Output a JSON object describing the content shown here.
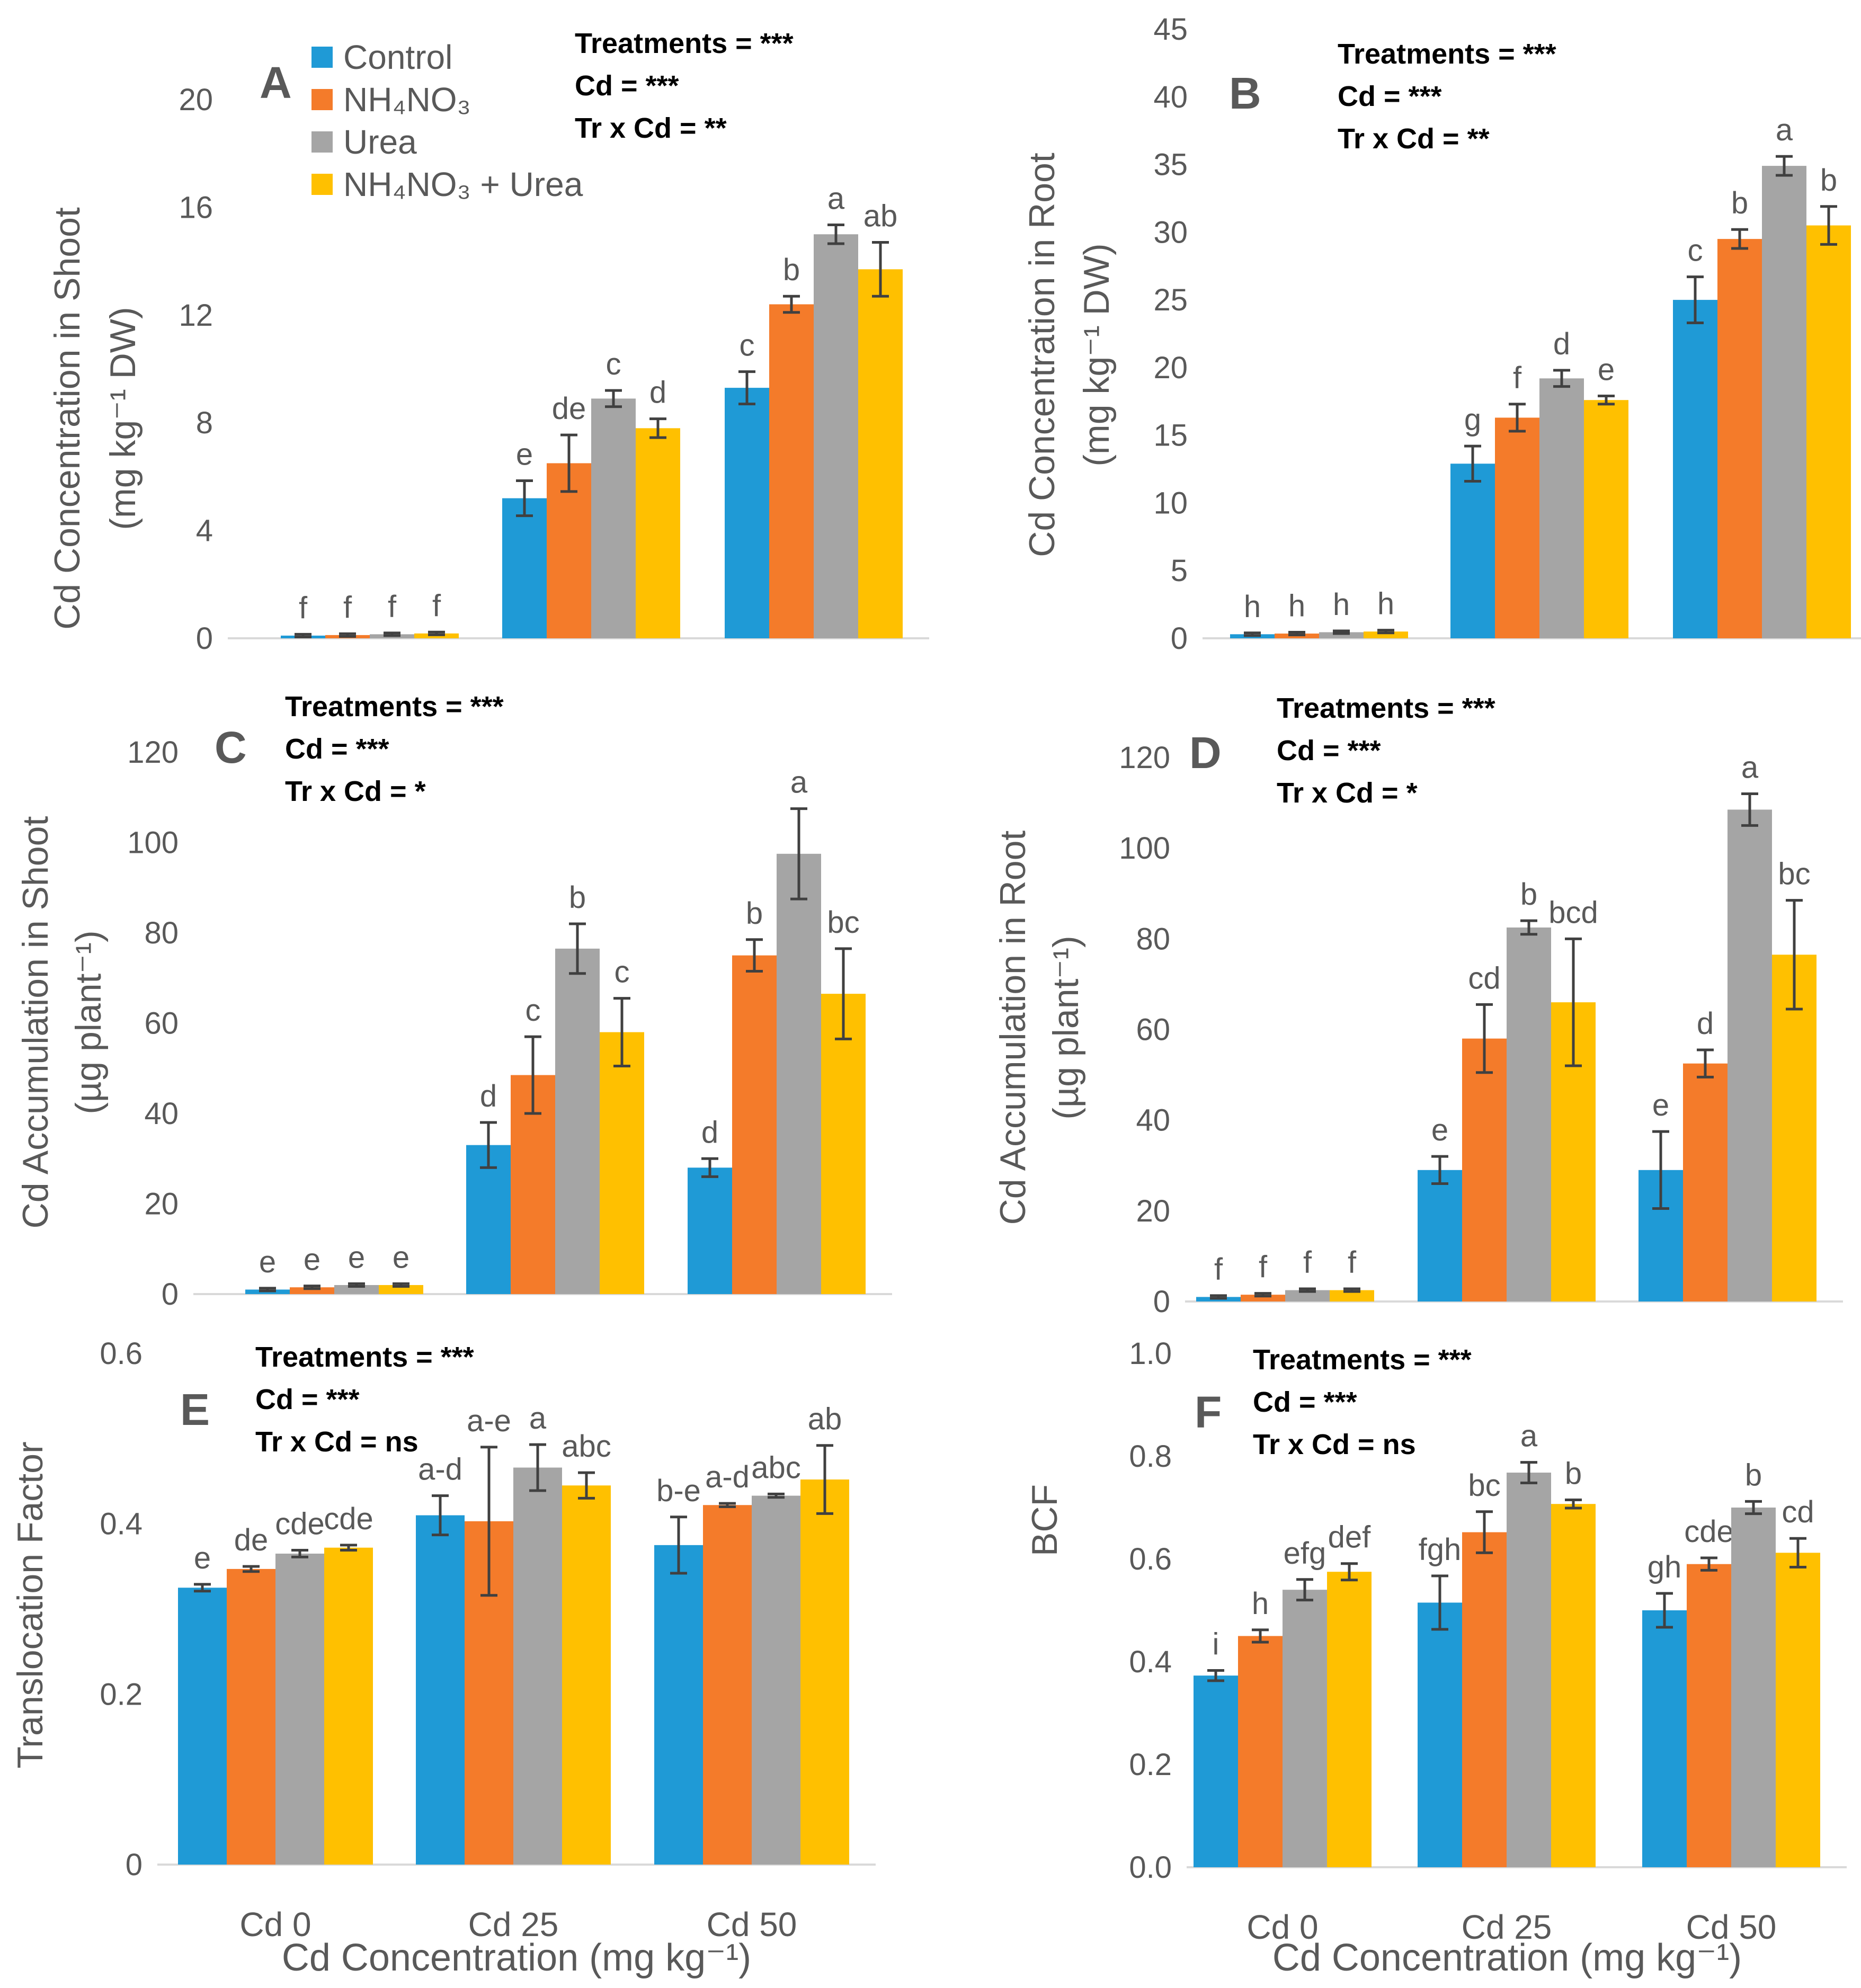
{
  "legend": {
    "items": [
      {
        "label": "Control",
        "color": "#1f9ad6"
      },
      {
        "label": "NH₄NO₃",
        "color": "#f47b2a"
      },
      {
        "label": "Urea",
        "color": "#a5a5a5"
      },
      {
        "label": "NH₄NO₃ + Urea",
        "color": "#ffc000"
      }
    ]
  },
  "x_axis": {
    "categories": [
      "Cd 0",
      "Cd 25",
      "Cd 50"
    ],
    "label_left": "Cd Concentration (mg kg⁻¹)",
    "label_right": "Cd Concentration (mg kg⁻¹)"
  },
  "chart_data": [
    {
      "id": "A",
      "type": "bar",
      "panel_label": "A",
      "ylabel_1": "Cd Concentration in Shoot",
      "ylabel_2": "(mg kg⁻¹ DW)",
      "ylim": [
        0,
        20
      ],
      "yticks": [
        0,
        4,
        8,
        12,
        16,
        20
      ],
      "ytick_labels": [
        "0",
        "4",
        "8",
        "12",
        "16",
        "20"
      ],
      "stats": [
        "Treatments = ***",
        "Cd = ***",
        "Tr x Cd = **"
      ],
      "categories": [
        "Cd 0",
        "Cd 25",
        "Cd 50"
      ],
      "series": [
        {
          "name": "Control",
          "values": [
            0.1,
            5.2,
            9.3
          ],
          "errors": [
            0.05,
            0.65,
            0.6
          ],
          "letters": [
            "f",
            "e",
            "c"
          ]
        },
        {
          "name": "NH₄NO₃",
          "values": [
            0.12,
            6.5,
            12.4
          ],
          "errors": [
            0.05,
            1.05,
            0.3
          ],
          "letters": [
            "f",
            "de",
            "b"
          ]
        },
        {
          "name": "Urea",
          "values": [
            0.15,
            8.9,
            15.0
          ],
          "errors": [
            0.05,
            0.3,
            0.35
          ],
          "letters": [
            "f",
            "c",
            "a"
          ]
        },
        {
          "name": "NH₄NO₃ + Urea",
          "values": [
            0.18,
            7.8,
            13.7
          ],
          "errors": [
            0.05,
            0.35,
            1.0
          ],
          "letters": [
            "f",
            "d",
            "ab"
          ]
        }
      ]
    },
    {
      "id": "B",
      "type": "bar",
      "panel_label": "B",
      "ylabel_1": "Cd Concentration in Root",
      "ylabel_2": "(mg kg⁻¹ DW)",
      "ylim": [
        0,
        45
      ],
      "yticks": [
        0,
        5,
        10,
        15,
        20,
        25,
        30,
        35,
        40,
        45
      ],
      "ytick_labels": [
        "0",
        "5",
        "10",
        "15",
        "20",
        "25",
        "30",
        "35",
        "40",
        "45"
      ],
      "stats": [
        "Treatments = ***",
        "Cd = ***",
        "Tr x Cd = **"
      ],
      "categories": [
        "Cd 0",
        "Cd 25",
        "Cd 50"
      ],
      "series": [
        {
          "name": "Control",
          "values": [
            0.3,
            12.9,
            25.0
          ],
          "errors": [
            0.1,
            1.3,
            1.7
          ],
          "letters": [
            "h",
            "g",
            "c"
          ]
        },
        {
          "name": "NH₄NO₃",
          "values": [
            0.35,
            16.3,
            29.5
          ],
          "errors": [
            0.1,
            1.0,
            0.7
          ],
          "letters": [
            "h",
            "f",
            "b"
          ]
        },
        {
          "name": "Urea",
          "values": [
            0.45,
            19.2,
            34.9
          ],
          "errors": [
            0.1,
            0.6,
            0.7
          ],
          "letters": [
            "h",
            "d",
            "a"
          ]
        },
        {
          "name": "NH₄NO₃ + Urea",
          "values": [
            0.5,
            17.6,
            30.5
          ],
          "errors": [
            0.1,
            0.3,
            1.4
          ],
          "letters": [
            "h",
            "e",
            "b"
          ]
        }
      ]
    },
    {
      "id": "C",
      "type": "bar",
      "panel_label": "C",
      "ylabel_1": "Cd Accumulation in Shoot",
      "ylabel_2": "(µg plant⁻¹)",
      "ylim": [
        0,
        120
      ],
      "yticks": [
        0,
        20,
        40,
        60,
        80,
        100,
        120
      ],
      "ytick_labels": [
        "0",
        "20",
        "40",
        "60",
        "80",
        "100",
        "120"
      ],
      "stats": [
        "Treatments = ***",
        "Cd = ***",
        "Tr x Cd = *"
      ],
      "categories": [
        "Cd 0",
        "Cd 25",
        "Cd 50"
      ],
      "series": [
        {
          "name": "Control",
          "values": [
            1.0,
            33.0,
            28.0
          ],
          "errors": [
            0.3,
            5.0,
            2.0
          ],
          "letters": [
            "e",
            "d",
            "d"
          ]
        },
        {
          "name": "NH₄NO₃",
          "values": [
            1.5,
            48.5,
            75.0
          ],
          "errors": [
            0.3,
            8.5,
            3.5
          ],
          "letters": [
            "e",
            "c",
            "b"
          ]
        },
        {
          "name": "Urea",
          "values": [
            2.0,
            76.5,
            97.5
          ],
          "errors": [
            0.3,
            5.5,
            10.0
          ],
          "letters": [
            "e",
            "b",
            "a"
          ]
        },
        {
          "name": "NH₄NO₃ + Urea",
          "values": [
            2.0,
            58.0,
            66.5
          ],
          "errors": [
            0.3,
            7.5,
            10.0
          ],
          "letters": [
            "e",
            "c",
            "bc"
          ]
        }
      ]
    },
    {
      "id": "D",
      "type": "bar",
      "panel_label": "D",
      "ylabel_1": "Cd Accumulation in Root",
      "ylabel_2": "(µg plant⁻¹)",
      "ylim": [
        0,
        120
      ],
      "yticks": [
        0,
        20,
        40,
        60,
        80,
        100,
        120
      ],
      "ytick_labels": [
        "0",
        "20",
        "40",
        "60",
        "80",
        "100",
        "120"
      ],
      "stats": [
        "Treatments = ***",
        "Cd = ***",
        "Tr x Cd = *"
      ],
      "categories": [
        "Cd 0",
        "Cd 25",
        "Cd 50"
      ],
      "series": [
        {
          "name": "Control",
          "values": [
            1.0,
            29.0,
            29.0
          ],
          "errors": [
            0.3,
            3.0,
            8.5
          ],
          "letters": [
            "f",
            "e",
            "e"
          ]
        },
        {
          "name": "NH₄NO₃",
          "values": [
            1.5,
            58.0,
            52.5
          ],
          "errors": [
            0.3,
            7.5,
            3.0
          ],
          "letters": [
            "f",
            "cd",
            "d"
          ]
        },
        {
          "name": "Urea",
          "values": [
            2.5,
            82.5,
            108.5
          ],
          "errors": [
            0.3,
            1.5,
            3.5
          ],
          "letters": [
            "f",
            "b",
            "a"
          ]
        },
        {
          "name": "NH₄NO₃ + Urea",
          "values": [
            2.5,
            66.0,
            76.5
          ],
          "errors": [
            0.3,
            14.0,
            12.0
          ],
          "letters": [
            "f",
            "bcd",
            "bc"
          ]
        }
      ]
    },
    {
      "id": "E",
      "type": "bar",
      "panel_label": "E",
      "ylabel_1": "Translocation Factor",
      "ylabel_2": "",
      "ylim": [
        0,
        0.6
      ],
      "yticks": [
        0,
        0.2,
        0.4,
        0.6
      ],
      "ytick_labels": [
        "0",
        "0.2",
        "0.4",
        "0.6"
      ],
      "stats": [
        "Treatments = ***",
        "Cd = ***",
        "Tr x Cd = ns"
      ],
      "categories": [
        "Cd 0",
        "Cd 25",
        "Cd 50"
      ],
      "series": [
        {
          "name": "Control",
          "values": [
            0.325,
            0.41,
            0.375
          ],
          "errors": [
            0.004,
            0.023,
            0.033
          ],
          "letters": [
            "e",
            "a-d",
            "b-e"
          ]
        },
        {
          "name": "NH₄NO₃",
          "values": [
            0.347,
            0.403,
            0.422
          ],
          "errors": [
            0.003,
            0.087,
            0.002
          ],
          "letters": [
            "de",
            "a-e",
            "a-d"
          ]
        },
        {
          "name": "Urea",
          "values": [
            0.365,
            0.466,
            0.433
          ],
          "errors": [
            0.004,
            0.027,
            0.002
          ],
          "letters": [
            "cde",
            "a",
            "abc"
          ]
        },
        {
          "name": "NH₄NO₃ + Urea",
          "values": [
            0.372,
            0.445,
            0.452
          ],
          "errors": [
            0.003,
            0.015,
            0.04
          ],
          "letters": [
            "cde",
            "abc",
            "ab"
          ]
        }
      ]
    },
    {
      "id": "F",
      "type": "bar",
      "panel_label": "F",
      "ylabel_1": "BCF",
      "ylabel_2": "",
      "ylim": [
        0,
        1.0
      ],
      "yticks": [
        0,
        0.2,
        0.4,
        0.6,
        0.8,
        1.0
      ],
      "ytick_labels": [
        "0.0",
        "0.2",
        "0.4",
        "0.6",
        "0.8",
        "1.0"
      ],
      "stats": [
        "Treatments = ***",
        "Cd = ***",
        "Tr x Cd = ns"
      ],
      "categories": [
        "Cd 0",
        "Cd 25",
        "Cd 50"
      ],
      "series": [
        {
          "name": "Control",
          "values": [
            0.373,
            0.515,
            0.5
          ],
          "errors": [
            0.01,
            0.052,
            0.033
          ],
          "letters": [
            "i",
            "fgh",
            "gh"
          ]
        },
        {
          "name": "NH₄NO₃",
          "values": [
            0.45,
            0.652,
            0.59
          ],
          "errors": [
            0.012,
            0.04,
            0.012
          ],
          "letters": [
            "h",
            "bc",
            "cde"
          ]
        },
        {
          "name": "Urea",
          "values": [
            0.54,
            0.768,
            0.7
          ],
          "errors": [
            0.02,
            0.02,
            0.012
          ],
          "letters": [
            "efg",
            "a",
            "b"
          ]
        },
        {
          "name": "NH₄NO₃ + Urea",
          "values": [
            0.575,
            0.707,
            0.612
          ],
          "errors": [
            0.016,
            0.008,
            0.028
          ],
          "letters": [
            "def",
            "b",
            "cd"
          ]
        }
      ]
    }
  ]
}
